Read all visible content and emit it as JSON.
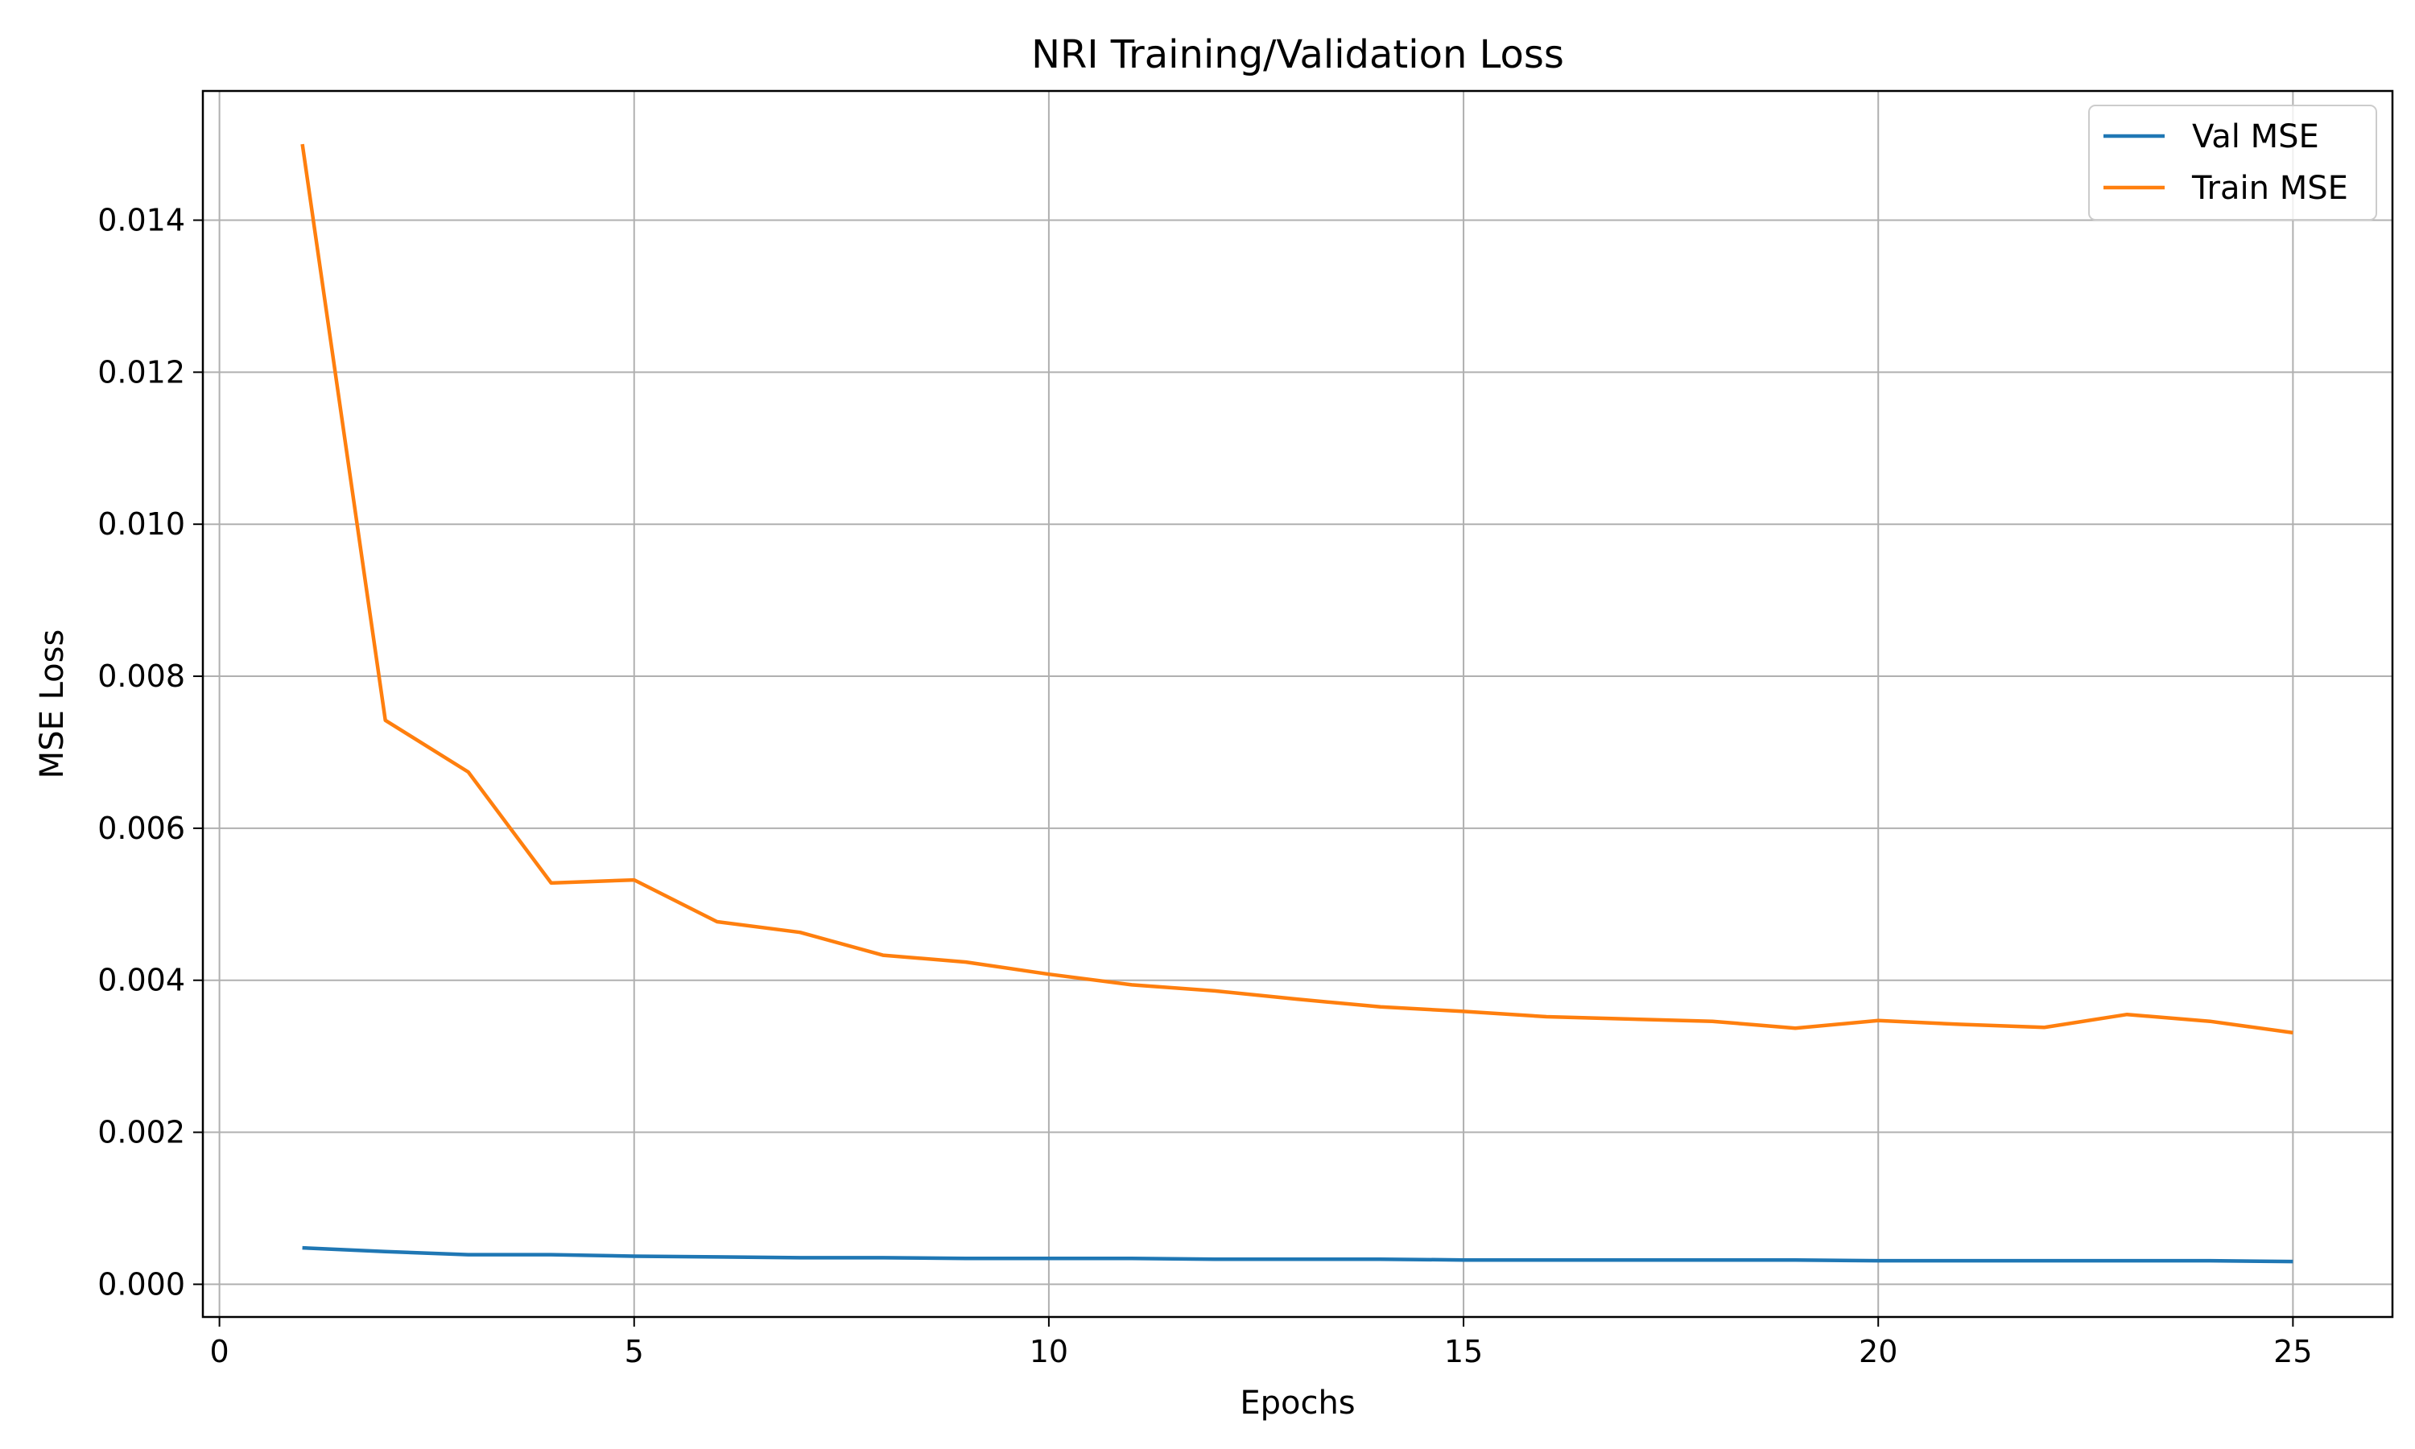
{
  "chart_data": {
    "type": "line",
    "title": "NRI Training/Validation Loss",
    "xlabel": "Epochs",
    "ylabel": "MSE Loss",
    "xlim": [
      -0.2,
      26.2
    ],
    "ylim": [
      -0.00043,
      0.0157
    ],
    "x_ticks": [
      0,
      5,
      10,
      15,
      20,
      25
    ],
    "x_tick_labels": [
      "0",
      "5",
      "10",
      "15",
      "20",
      "25"
    ],
    "y_ticks": [
      0.0,
      0.002,
      0.004,
      0.006,
      0.008,
      0.01,
      0.012,
      0.014
    ],
    "y_tick_labels": [
      "0.000",
      "0.002",
      "0.004",
      "0.006",
      "0.008",
      "0.010",
      "0.012",
      "0.014"
    ],
    "grid": true,
    "legend_position": "top-right",
    "x": [
      1,
      2,
      3,
      4,
      5,
      6,
      7,
      8,
      9,
      10,
      11,
      12,
      13,
      14,
      15,
      16,
      17,
      18,
      19,
      20,
      21,
      22,
      23,
      24,
      25
    ],
    "series": [
      {
        "name": "Val MSE",
        "color": "#1f77b4",
        "values": [
          0.00048,
          0.00043,
          0.00039,
          0.00039,
          0.00037,
          0.00036,
          0.00035,
          0.00035,
          0.00034,
          0.00034,
          0.00034,
          0.00033,
          0.00033,
          0.00033,
          0.00032,
          0.00032,
          0.00032,
          0.00032,
          0.00032,
          0.00031,
          0.00031,
          0.00031,
          0.00031,
          0.00031,
          0.0003
        ]
      },
      {
        "name": "Train MSE",
        "color": "#ff7f0e",
        "values": [
          0.015,
          0.00742,
          0.00674,
          0.00528,
          0.00532,
          0.00477,
          0.00463,
          0.00433,
          0.00424,
          0.00408,
          0.00394,
          0.00386,
          0.00375,
          0.00365,
          0.00359,
          0.00352,
          0.00349,
          0.00346,
          0.00337,
          0.00347,
          0.00342,
          0.00338,
          0.00355,
          0.00346,
          0.00331
        ]
      }
    ]
  }
}
